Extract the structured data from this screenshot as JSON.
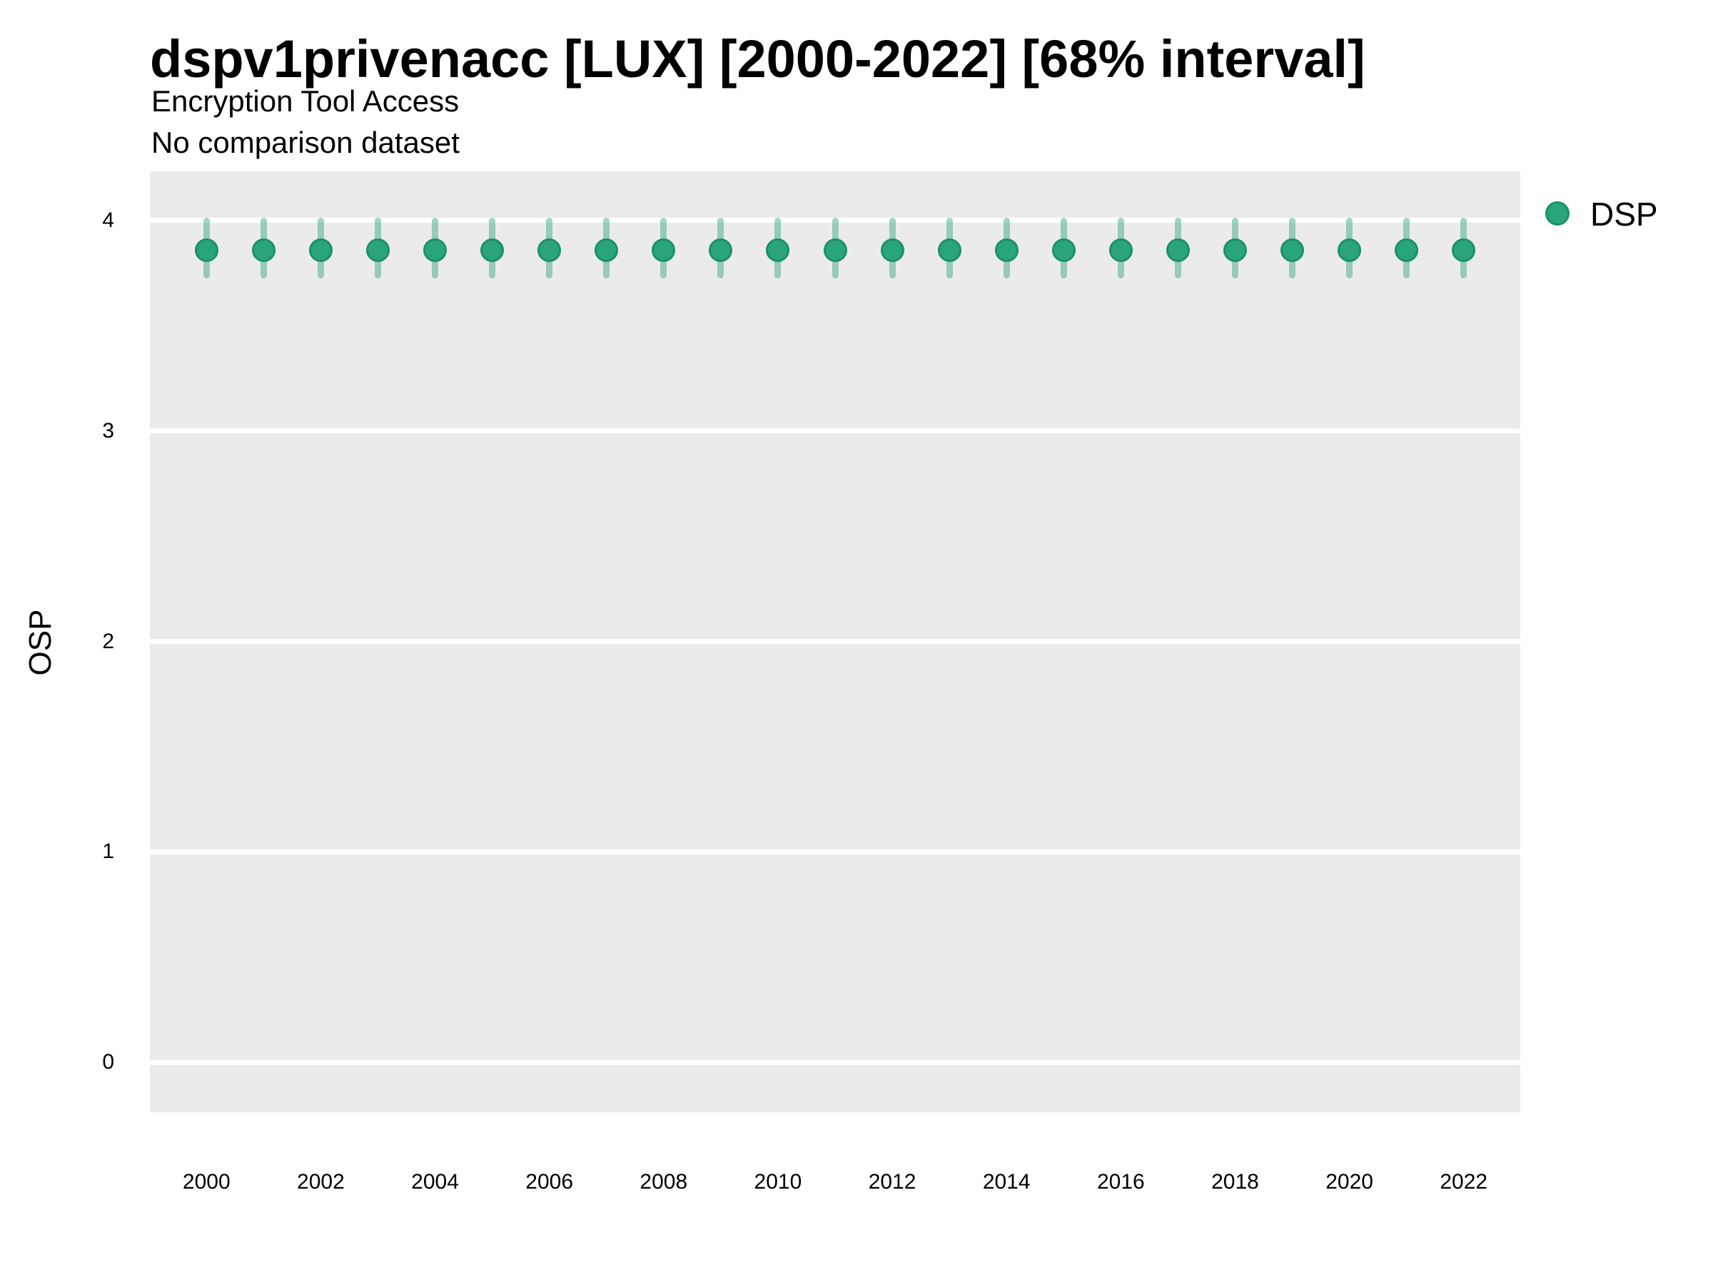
{
  "header": {
    "title": "dspv1privenacc [LUX] [2000-2022] [68% interval]",
    "subtitle": "Encryption Tool Access",
    "note": "No comparison dataset"
  },
  "legend": {
    "label": "DSP",
    "position": "right"
  },
  "colors": {
    "point_fill": "#2aa57a",
    "point_border": "#1c9166",
    "interval_band": "rgba(44, 165, 120, 0.45)",
    "panel_background": "#ebebeb",
    "gridline": "#ffffff",
    "text": "#000000"
  },
  "chart_data": {
    "type": "scatter",
    "title": "dspv1privenacc [LUX] [2000-2022] [68% interval]",
    "subtitle": "Encryption Tool Access",
    "note": "No comparison dataset",
    "xlabel": "",
    "ylabel": "OSP",
    "interval": "68%",
    "grid": "horizontal-major-only",
    "legend_position": "right",
    "xlim": [
      1999,
      2023
    ],
    "ylim": [
      -0.24,
      4.23
    ],
    "x_ticks": [
      2000,
      2002,
      2004,
      2006,
      2008,
      2010,
      2012,
      2014,
      2016,
      2018,
      2020,
      2022
    ],
    "x_tick_labels": [
      "2000",
      "2002",
      "2004",
      "2006",
      "2008",
      "2010",
      "2012",
      "2014",
      "2016",
      "2018",
      "2020",
      "2022"
    ],
    "y_ticks": [
      0,
      1,
      2,
      3,
      4
    ],
    "y_tick_labels": [
      "0",
      "1",
      "2",
      "3",
      "4"
    ],
    "series": [
      {
        "name": "DSP",
        "x": [
          2000,
          2001,
          2002,
          2003,
          2004,
          2005,
          2006,
          2007,
          2008,
          2009,
          2010,
          2011,
          2012,
          2013,
          2014,
          2015,
          2016,
          2017,
          2018,
          2019,
          2020,
          2021,
          2022
        ],
        "y": [
          3.86,
          3.86,
          3.86,
          3.86,
          3.86,
          3.86,
          3.86,
          3.86,
          3.86,
          3.86,
          3.86,
          3.86,
          3.86,
          3.86,
          3.86,
          3.86,
          3.86,
          3.86,
          3.86,
          3.86,
          3.86,
          3.86,
          3.86
        ],
        "lo": [
          3.74,
          3.74,
          3.74,
          3.74,
          3.74,
          3.74,
          3.74,
          3.74,
          3.74,
          3.74,
          3.74,
          3.74,
          3.74,
          3.74,
          3.74,
          3.74,
          3.74,
          3.74,
          3.74,
          3.74,
          3.74,
          3.74,
          3.74
        ],
        "hi": [
          4.0,
          4.0,
          4.0,
          4.0,
          4.0,
          4.0,
          4.0,
          4.0,
          4.0,
          4.0,
          4.0,
          4.0,
          4.0,
          4.0,
          4.0,
          4.0,
          4.0,
          4.0,
          4.0,
          4.0,
          4.0,
          4.0,
          4.0
        ]
      }
    ]
  }
}
